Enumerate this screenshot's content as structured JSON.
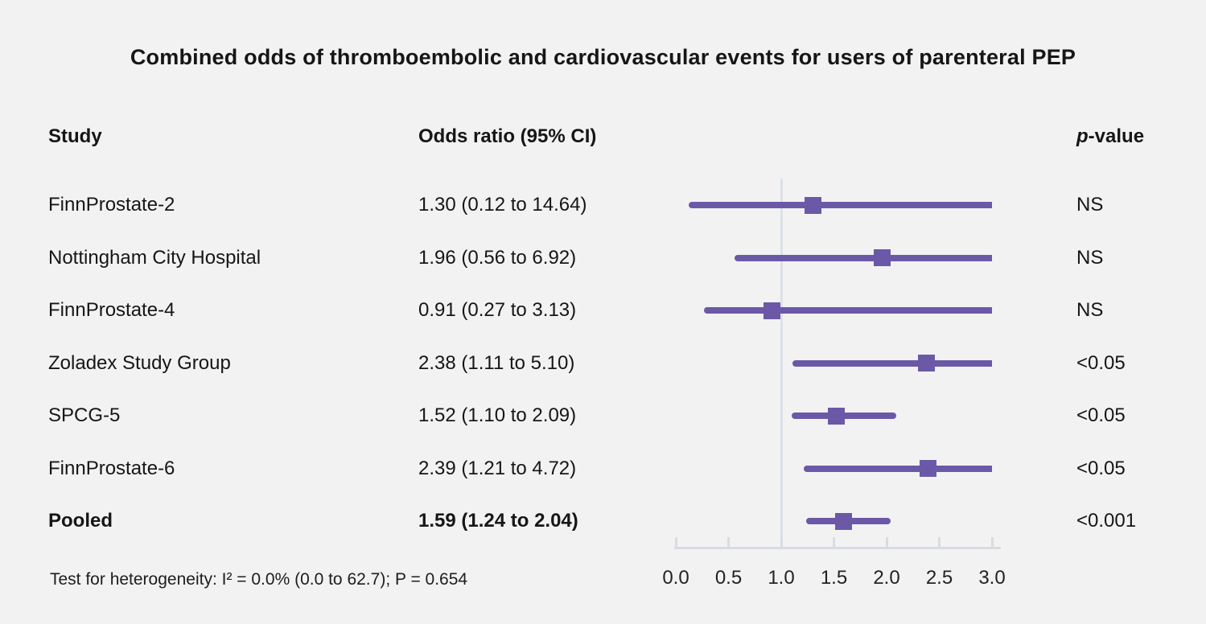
{
  "title": "Combined odds of thromboembolic and cardiovascular events for users of parenteral PEP",
  "columns": {
    "study": "Study",
    "odds_ratio": "Odds ratio (95% CI)",
    "p_prefix": "p",
    "p_suffix": "-value"
  },
  "footer": "Test for heterogeneity: I² = 0.0% (0.0 to 62.7); P = 0.654",
  "colors": {
    "accent": "#6b59a7",
    "background": "#f2f2f2",
    "axis": "#d8dce2",
    "reference_line": "#dde1e7",
    "text": "#161616"
  },
  "chart_data": {
    "type": "forest",
    "title": "Combined odds of thromboembolic and cardiovascular events for users of parenteral PEP",
    "xlabel": "",
    "xlim": [
      0.0,
      3.0
    ],
    "xticks": [
      "0.0",
      "0.5",
      "1.0",
      "1.5",
      "2.0",
      "2.5",
      "3.0"
    ],
    "reference_line": 1.0,
    "legend": "none",
    "grid": false,
    "rows": [
      {
        "study": "FinnProstate-2",
        "or_label": "1.30 (0.12 to 14.64)",
        "or": 1.3,
        "lo": 0.12,
        "hi": 14.64,
        "p": "NS",
        "bold": false
      },
      {
        "study": "Nottingham City Hospital",
        "or_label": "1.96 (0.56 to 6.92)",
        "or": 1.96,
        "lo": 0.56,
        "hi": 6.92,
        "p": "NS",
        "bold": false
      },
      {
        "study": "FinnProstate-4",
        "or_label": "0.91 (0.27 to 3.13)",
        "or": 0.91,
        "lo": 0.27,
        "hi": 3.13,
        "p": "NS",
        "bold": false
      },
      {
        "study": "Zoladex Study Group",
        "or_label": "2.38 (1.11 to 5.10)",
        "or": 2.38,
        "lo": 1.11,
        "hi": 5.1,
        "p": "<0.05",
        "bold": false
      },
      {
        "study": "SPCG-5",
        "or_label": "1.52 (1.10 to 2.09)",
        "or": 1.52,
        "lo": 1.1,
        "hi": 2.09,
        "p": "<0.05",
        "bold": false
      },
      {
        "study": "FinnProstate-6",
        "or_label": "2.39 (1.21 to 4.72)",
        "or": 2.39,
        "lo": 1.21,
        "hi": 4.72,
        "p": "<0.05",
        "bold": false
      },
      {
        "study": "Pooled",
        "or_label": "1.59 (1.24 to 2.04)",
        "or": 1.59,
        "lo": 1.24,
        "hi": 2.04,
        "p": "<0.001",
        "bold": true
      }
    ]
  }
}
